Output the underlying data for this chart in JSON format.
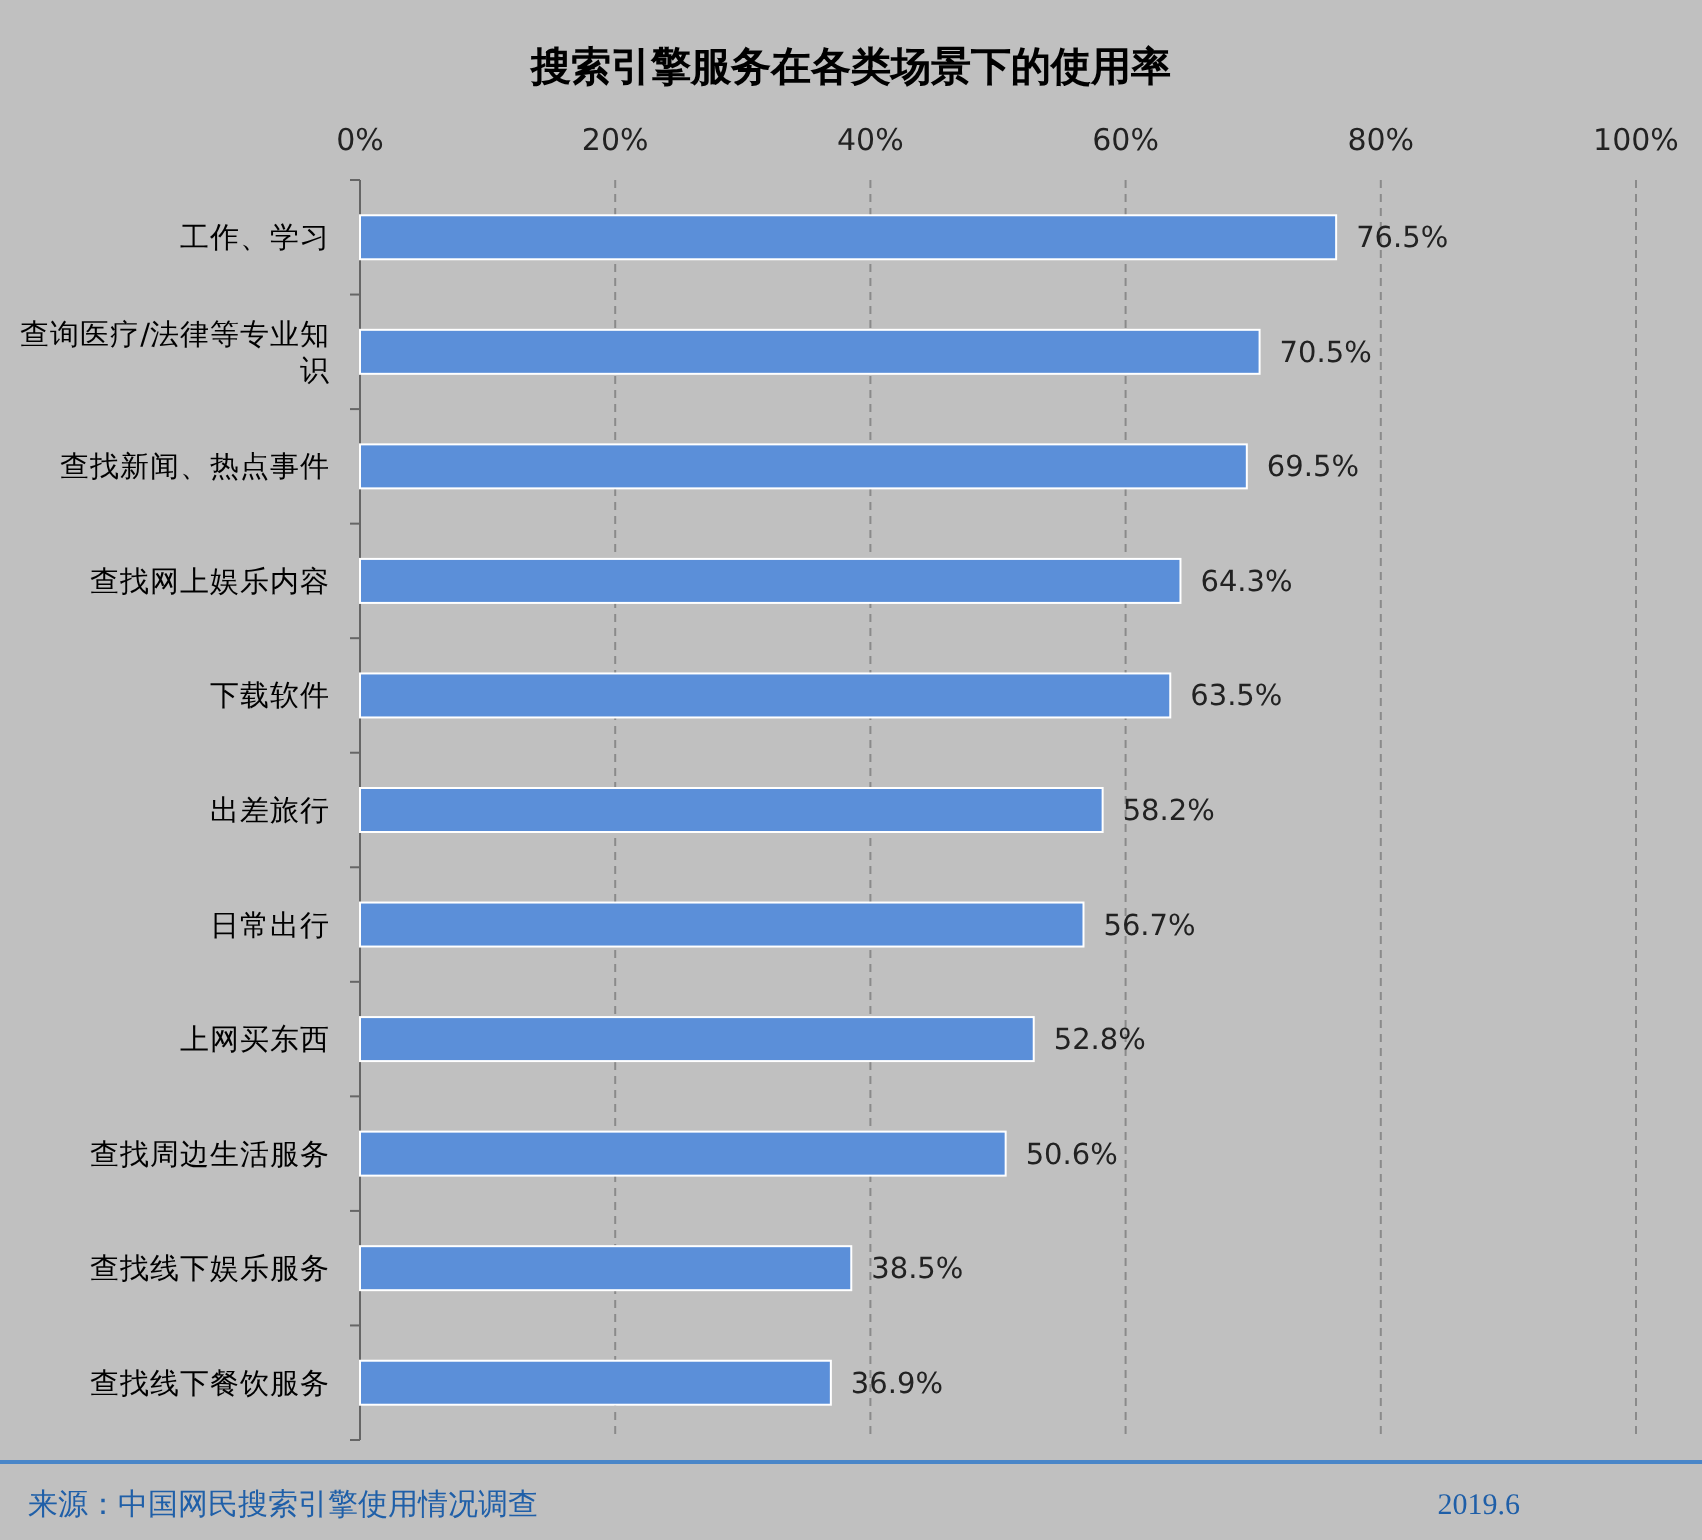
{
  "chart_data": {
    "type": "bar",
    "orientation": "horizontal",
    "title": "搜索引擎服务在各类场景下的使用率",
    "categories": [
      "工作、学习",
      "查询医疗/法律等专业知识",
      "查找新闻、热点事件",
      "查找网上娱乐内容",
      "下载软件",
      "出差旅行",
      "日常出行",
      "上网买东西",
      "查找周边生活服务",
      "查找线下娱乐服务",
      "查找线下餐饮服务"
    ],
    "values": [
      76.5,
      70.5,
      69.5,
      64.3,
      63.5,
      58.2,
      56.7,
      52.8,
      50.6,
      38.5,
      36.9
    ],
    "value_labels": [
      "76.5%",
      "70.5%",
      "69.5%",
      "64.3%",
      "63.5%",
      "58.2%",
      "56.7%",
      "52.8%",
      "50.6%",
      "38.5%",
      "36.9%"
    ],
    "color": "#5b8fd9",
    "xlim": [
      0,
      100
    ],
    "xticks": [
      {
        "value": 0,
        "label": "0%"
      },
      {
        "value": 20,
        "label": "20%"
      },
      {
        "value": 40,
        "label": "40%"
      },
      {
        "value": 60,
        "label": "60%"
      },
      {
        "value": 80,
        "label": "80%"
      },
      {
        "value": 100,
        "label": "100%"
      }
    ],
    "grid": "x",
    "annotations": [
      "来源：中国网民搜索引擎使用情况调查",
      "2019.6"
    ]
  }
}
